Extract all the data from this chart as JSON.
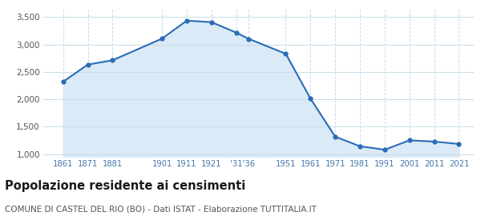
{
  "years": [
    1861,
    1871,
    1881,
    1901,
    1911,
    1921,
    1931,
    1936,
    1951,
    1961,
    1971,
    1981,
    1991,
    2001,
    2011,
    2021
  ],
  "population": [
    2321,
    2634,
    2713,
    3109,
    3437,
    3409,
    3218,
    3105,
    2832,
    2012,
    1317,
    1143,
    1079,
    1251,
    1228,
    1184
  ],
  "y_ticks": [
    1000,
    1500,
    2000,
    2500,
    3000,
    3500
  ],
  "ylim": [
    950,
    3650
  ],
  "xlim": [
    1853,
    2027
  ],
  "line_color": "#2b6cb8",
  "fill_color": "#daeaf6",
  "marker_color": "#2b6cb8",
  "grid_color": "#c8dce8",
  "bg_color": "#ffffff",
  "title": "Popolazione residente ai censimenti",
  "subtitle": "COMUNE DI CASTEL DEL RIO (BO) - Dati ISTAT - Elaborazione TUTTITALIA.IT",
  "title_fontsize": 10.5,
  "subtitle_fontsize": 7.5,
  "tick_color": "#4477aa"
}
